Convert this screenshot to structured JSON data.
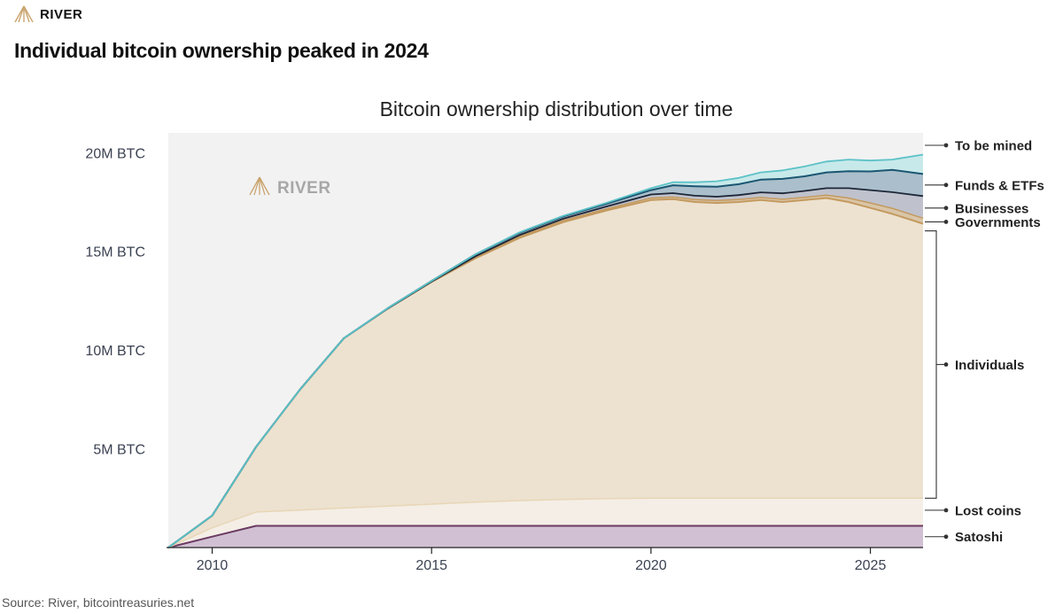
{
  "header": {
    "brand": "RIVER",
    "headline": "Individual bitcoin ownership peaked in 2024"
  },
  "footer": {
    "source": "Source: River, bitcointreasuries.net"
  },
  "colors": {
    "plot_bg": "#f2f2f2",
    "to_be_mined_fill": "#c8e9ea",
    "to_be_mined_line": "#5cc2c7",
    "funds_fill": "#aabfcb",
    "funds_line": "#1b5672",
    "businesses_fill": "#bfc2cc",
    "businesses_line": "#1d2638",
    "governments_fill": "#d9c5a8",
    "governments_line": "#c49a5f",
    "individuals_fill": "#ede2d0",
    "lost_fill": "#f4eee6",
    "lost_line": "#e8d6b6",
    "satoshi_fill": "#d1c0d3",
    "satoshi_line": "#6b3a62",
    "brand_gold": "#c9a46e"
  },
  "chart_data": {
    "type": "area",
    "stacked": true,
    "title": "Bitcoin ownership distribution over time",
    "xlabel": "",
    "ylabel": "",
    "xlim": [
      2009,
      2026.2
    ],
    "ylim": [
      0,
      21
    ],
    "x_ticks": [
      2010,
      2015,
      2020,
      2025
    ],
    "x_tick_labels": [
      "2010",
      "2015",
      "2020",
      "2025"
    ],
    "y_ticks": [
      5,
      10,
      15,
      20
    ],
    "y_tick_labels": [
      "5M BTC",
      "10M BTC",
      "15M BTC",
      "20M BTC"
    ],
    "units": "million BTC",
    "watermark": "RIVER",
    "x": [
      2009.0,
      2010.0,
      2011.0,
      2012.0,
      2013.0,
      2014.0,
      2015.0,
      2016.0,
      2017.0,
      2018.0,
      2019.0,
      2020.0,
      2020.5,
      2021.0,
      2021.5,
      2022.0,
      2022.5,
      2023.0,
      2023.5,
      2024.0,
      2024.5,
      2025.0,
      2025.5,
      2026.2
    ],
    "series": [
      {
        "name": "Satoshi",
        "values": [
          0,
          0.55,
          1.1,
          1.1,
          1.1,
          1.1,
          1.1,
          1.1,
          1.1,
          1.1,
          1.1,
          1.1,
          1.1,
          1.1,
          1.1,
          1.1,
          1.1,
          1.1,
          1.1,
          1.1,
          1.1,
          1.1,
          1.1,
          1.1
        ]
      },
      {
        "name": "Lost coins",
        "values": [
          0,
          0.45,
          0.7,
          0.8,
          0.9,
          1.0,
          1.1,
          1.2,
          1.28,
          1.33,
          1.38,
          1.4,
          1.4,
          1.4,
          1.4,
          1.4,
          1.4,
          1.4,
          1.4,
          1.4,
          1.4,
          1.4,
          1.4,
          1.4
        ]
      },
      {
        "name": "Individuals",
        "values": [
          0,
          0.62,
          3.3,
          6.1,
          8.6,
          10.0,
          11.25,
          12.35,
          13.3,
          14.05,
          14.6,
          15.1,
          15.15,
          15.0,
          14.95,
          15.0,
          15.1,
          15.0,
          15.1,
          15.2,
          15.0,
          14.7,
          14.4,
          13.9
        ]
      },
      {
        "name": "Governments",
        "values": [
          0,
          0,
          0,
          0,
          0,
          0,
          0,
          0.05,
          0.07,
          0.08,
          0.08,
          0.1,
          0.1,
          0.12,
          0.12,
          0.13,
          0.13,
          0.14,
          0.14,
          0.15,
          0.2,
          0.25,
          0.28,
          0.28
        ]
      },
      {
        "name": "Businesses",
        "values": [
          0,
          0,
          0,
          0,
          0,
          0,
          0.02,
          0.05,
          0.07,
          0.09,
          0.12,
          0.18,
          0.2,
          0.2,
          0.2,
          0.22,
          0.26,
          0.3,
          0.32,
          0.35,
          0.5,
          0.65,
          0.82,
          1.12
        ]
      },
      {
        "name": "Funds & ETFs",
        "values": [
          0,
          0,
          0,
          0,
          0,
          0.02,
          0.03,
          0.1,
          0.12,
          0.12,
          0.14,
          0.22,
          0.4,
          0.48,
          0.5,
          0.55,
          0.64,
          0.73,
          0.74,
          0.8,
          0.86,
          0.95,
          1.13,
          1.12
        ]
      },
      {
        "name": "To be mined",
        "values": [
          0,
          0,
          0,
          0,
          0,
          0,
          0,
          0,
          0.02,
          0.03,
          0.05,
          0.1,
          0.15,
          0.2,
          0.28,
          0.32,
          0.37,
          0.43,
          0.5,
          0.55,
          0.59,
          0.55,
          0.52,
          0.98
        ]
      }
    ],
    "legend": [
      "To be mined",
      "Funds & ETFs",
      "Businesses",
      "Governments",
      "Individuals",
      "Lost coins",
      "Satoshi"
    ],
    "legend_placement": "right"
  }
}
